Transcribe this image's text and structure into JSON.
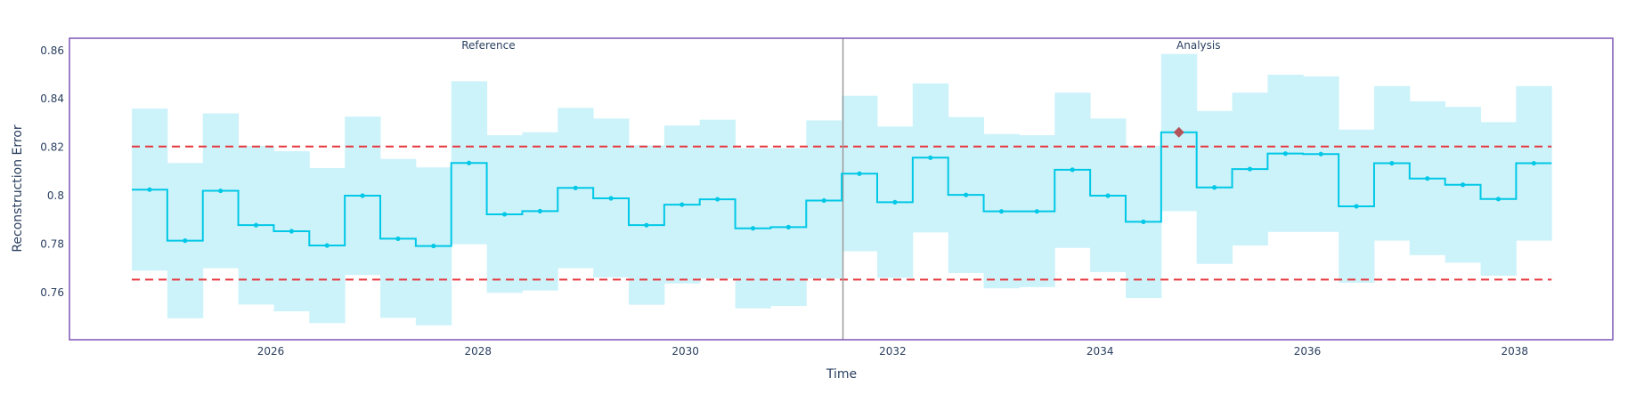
{
  "chart_data": {
    "type": "line",
    "subtype": "step-with-confidence-band",
    "title": "",
    "xlabel": "Time",
    "ylabel": "Reconstruction Error",
    "xlim": [
      2024.05,
      2038.95
    ],
    "ylim": [
      0.7405,
      0.8655
    ],
    "x_ticks": [
      2026,
      2028,
      2030,
      2032,
      2034,
      2036,
      2038
    ],
    "y_ticks": [
      0.76,
      0.78,
      0.8,
      0.82,
      0.84,
      0.86
    ],
    "y_tick_labels": [
      "0.76",
      "0.78",
      "0.8",
      "0.82",
      "0.84",
      "0.86"
    ],
    "grid": false,
    "legend": null,
    "bin_start": 2024.66,
    "bin_width": 0.3424,
    "divider_x": 2031.52,
    "sections": [
      {
        "label": "Reference",
        "center": 2028.1
      },
      {
        "label": "Analysis",
        "center": 2034.95
      }
    ],
    "thresholds": {
      "upper": 0.8203,
      "lower": 0.7653
    },
    "series": [
      {
        "name": "Reconstruction Error",
        "values": [
          0.8025,
          0.7814,
          0.802,
          0.7878,
          0.7853,
          0.7794,
          0.8,
          0.7822,
          0.7792,
          0.8135,
          0.7923,
          0.7936,
          0.8032,
          0.7989,
          0.7878,
          0.7963,
          0.7985,
          0.7865,
          0.787,
          0.798,
          0.8091,
          0.7973,
          0.8157,
          0.8003,
          0.7935,
          0.7935,
          0.8107,
          0.8,
          0.7892,
          0.8262,
          0.8034,
          0.811,
          0.8174,
          0.8172,
          0.7956,
          0.8134,
          0.8071,
          0.8045,
          0.7986,
          0.8134
        ]
      },
      {
        "name": "Upper Confidence Bound",
        "values": [
          0.836,
          0.8135,
          0.834,
          0.8206,
          0.8184,
          0.8114,
          0.8327,
          0.8152,
          0.8117,
          0.8473,
          0.825,
          0.8262,
          0.8363,
          0.8319,
          0.8208,
          0.829,
          0.8314,
          0.8196,
          0.8196,
          0.8311,
          0.8413,
          0.8286,
          0.8464,
          0.8325,
          0.8255,
          0.825,
          0.8426,
          0.8319,
          0.8206,
          0.8586,
          0.835,
          0.8426,
          0.85,
          0.8493,
          0.8273,
          0.8453,
          0.839,
          0.8367,
          0.8304,
          0.8453
        ]
      },
      {
        "name": "Lower Confidence Bound",
        "values": [
          0.769,
          0.7493,
          0.77,
          0.755,
          0.7522,
          0.7473,
          0.7672,
          0.7495,
          0.7464,
          0.7799,
          0.7598,
          0.7608,
          0.77,
          0.7662,
          0.7549,
          0.7637,
          0.7657,
          0.7534,
          0.7544,
          0.7657,
          0.777,
          0.766,
          0.7848,
          0.768,
          0.7617,
          0.7622,
          0.7784,
          0.7684,
          0.7577,
          0.7936,
          0.7718,
          0.7794,
          0.785,
          0.785,
          0.764,
          0.7814,
          0.7754,
          0.7723,
          0.7669,
          0.7814
        ]
      }
    ],
    "alerts": [
      {
        "bin_index": 29,
        "value": 0.8262
      }
    ],
    "colors": {
      "line": "#00c8e6",
      "band": "#cdf3fa",
      "threshold": "#e6363c",
      "alert": "#b3545a",
      "frame": "#7e57b5",
      "divider": "#9a9a9a",
      "text": "#2a3f5f"
    }
  }
}
